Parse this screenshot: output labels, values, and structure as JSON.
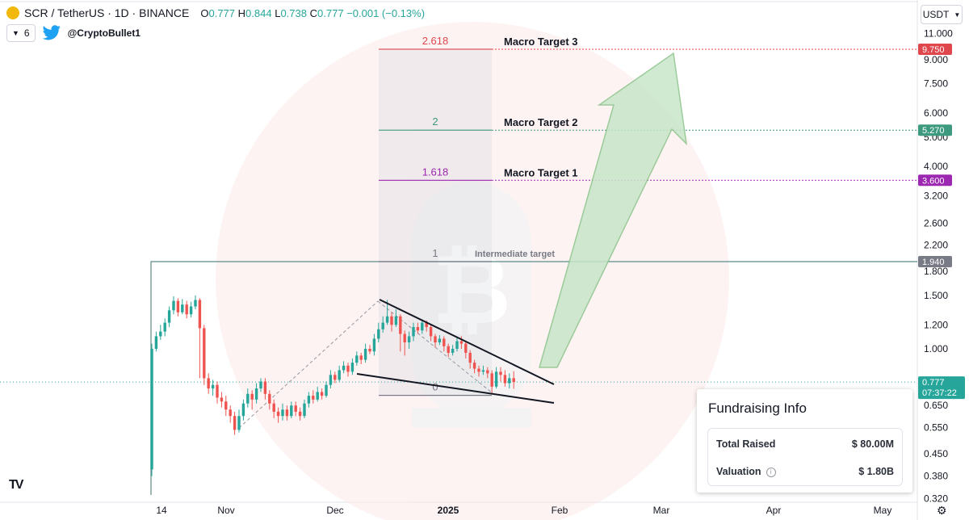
{
  "header": {
    "symbol": "SCR / TetherUS · 1D · BINANCE",
    "open_label": "O",
    "open": "0.777",
    "high_label": "H",
    "high": "0.844",
    "low_label": "L",
    "low": "0.738",
    "close_label": "C",
    "close": "0.777",
    "change": "−0.001 (−0.13%)",
    "interval_count": "6",
    "author": "@CryptoBullet1",
    "currency": "USDT"
  },
  "chart_data": {
    "type": "candlestick",
    "scale": "log",
    "ylim": [
      0.32,
      12.0
    ],
    "ytick_labels": [
      "11.000",
      "9.000",
      "7.500",
      "6.000",
      "5.000",
      "4.000",
      "3.200",
      "2.600",
      "2.200",
      "1.800",
      "1.500",
      "1.200",
      "1.000",
      "0.650",
      "0.550",
      "0.450",
      "0.380",
      "0.320"
    ],
    "xtick_labels": [
      "14",
      "Nov",
      "Dec",
      "2025",
      "Feb",
      "Mar",
      "Apr",
      "May"
    ],
    "candles": [
      [
        0.4,
        1.0,
        1.04,
        0.38
      ],
      [
        1.0,
        1.1,
        1.14,
        0.98
      ],
      [
        1.1,
        1.14,
        1.2,
        1.07
      ],
      [
        1.14,
        1.22,
        1.26,
        1.1
      ],
      [
        1.22,
        1.34,
        1.38,
        1.18
      ],
      [
        1.34,
        1.44,
        1.49,
        1.3
      ],
      [
        1.44,
        1.32,
        1.47,
        1.28
      ],
      [
        1.32,
        1.4,
        1.46,
        1.3
      ],
      [
        1.4,
        1.3,
        1.44,
        1.26
      ],
      [
        1.3,
        1.38,
        1.43,
        1.27
      ],
      [
        1.38,
        1.45,
        1.5,
        1.35
      ],
      [
        1.45,
        1.17,
        1.47,
        0.8
      ],
      [
        1.17,
        0.8,
        1.2,
        0.76
      ],
      [
        0.8,
        0.74,
        0.83,
        0.71
      ],
      [
        0.74,
        0.76,
        0.79,
        0.7
      ],
      [
        0.76,
        0.69,
        0.78,
        0.66
      ],
      [
        0.69,
        0.67,
        0.72,
        0.64
      ],
      [
        0.67,
        0.63,
        0.7,
        0.6
      ],
      [
        0.63,
        0.6,
        0.65,
        0.57
      ],
      [
        0.6,
        0.54,
        0.62,
        0.52
      ],
      [
        0.54,
        0.6,
        0.63,
        0.53
      ],
      [
        0.6,
        0.66,
        0.68,
        0.58
      ],
      [
        0.66,
        0.71,
        0.74,
        0.64
      ],
      [
        0.71,
        0.68,
        0.73,
        0.63
      ],
      [
        0.68,
        0.74,
        0.77,
        0.66
      ],
      [
        0.74,
        0.78,
        0.8,
        0.72
      ],
      [
        0.78,
        0.71,
        0.8,
        0.68
      ],
      [
        0.71,
        0.66,
        0.73,
        0.63
      ],
      [
        0.66,
        0.62,
        0.68,
        0.59
      ],
      [
        0.62,
        0.6,
        0.64,
        0.57
      ],
      [
        0.6,
        0.63,
        0.66,
        0.58
      ],
      [
        0.63,
        0.6,
        0.65,
        0.58
      ],
      [
        0.6,
        0.65,
        0.67,
        0.59
      ],
      [
        0.65,
        0.62,
        0.67,
        0.6
      ],
      [
        0.62,
        0.6,
        0.64,
        0.58
      ],
      [
        0.6,
        0.66,
        0.68,
        0.59
      ],
      [
        0.66,
        0.7,
        0.72,
        0.64
      ],
      [
        0.7,
        0.68,
        0.73,
        0.66
      ],
      [
        0.68,
        0.72,
        0.75,
        0.67
      ],
      [
        0.72,
        0.7,
        0.74,
        0.68
      ],
      [
        0.7,
        0.76,
        0.78,
        0.69
      ],
      [
        0.76,
        0.82,
        0.85,
        0.74
      ],
      [
        0.82,
        0.79,
        0.84,
        0.77
      ],
      [
        0.79,
        0.85,
        0.88,
        0.78
      ],
      [
        0.85,
        0.88,
        0.91,
        0.83
      ],
      [
        0.88,
        0.84,
        0.9,
        0.81
      ],
      [
        0.84,
        0.9,
        0.93,
        0.82
      ],
      [
        0.9,
        0.95,
        0.98,
        0.88
      ],
      [
        0.95,
        0.92,
        0.97,
        0.89
      ],
      [
        0.92,
        1.0,
        1.04,
        0.9
      ],
      [
        1.0,
        0.98,
        1.03,
        0.96
      ],
      [
        0.98,
        1.08,
        1.12,
        0.95
      ],
      [
        1.08,
        1.16,
        1.22,
        1.05
      ],
      [
        1.16,
        1.22,
        1.28,
        1.13
      ],
      [
        1.22,
        1.28,
        1.45,
        1.2
      ],
      [
        1.28,
        1.2,
        1.32,
        1.14
      ],
      [
        1.2,
        1.28,
        1.35,
        1.18
      ],
      [
        1.28,
        1.12,
        1.3,
        0.98
      ],
      [
        1.12,
        1.05,
        1.15,
        0.95
      ],
      [
        1.05,
        1.1,
        1.14,
        1.0
      ],
      [
        1.1,
        1.18,
        1.22,
        1.06
      ],
      [
        1.18,
        1.15,
        1.22,
        1.12
      ],
      [
        1.15,
        1.22,
        1.25,
        1.12
      ],
      [
        1.22,
        1.18,
        1.24,
        1.14
      ],
      [
        1.18,
        1.1,
        1.2,
        1.06
      ],
      [
        1.1,
        1.05,
        1.12,
        1.01
      ],
      [
        1.05,
        1.08,
        1.11,
        1.03
      ],
      [
        1.08,
        1.02,
        1.1,
        0.98
      ],
      [
        1.02,
        0.97,
        1.04,
        0.94
      ],
      [
        0.97,
        1.0,
        1.03,
        0.95
      ],
      [
        1.0,
        1.06,
        1.09,
        0.98
      ],
      [
        1.06,
        1.04,
        1.1,
        1.0
      ],
      [
        1.04,
        0.97,
        1.06,
        0.93
      ],
      [
        0.97,
        0.9,
        0.99,
        0.86
      ],
      [
        0.9,
        0.86,
        0.92,
        0.83
      ],
      [
        0.86,
        0.84,
        0.88,
        0.81
      ],
      [
        0.84,
        0.85,
        0.88,
        0.82
      ],
      [
        0.85,
        0.83,
        0.87,
        0.8
      ],
      [
        0.83,
        0.75,
        0.85,
        0.71
      ],
      [
        0.75,
        0.84,
        0.87,
        0.74
      ],
      [
        0.84,
        0.82,
        0.87,
        0.78
      ],
      [
        0.82,
        0.77,
        0.85,
        0.75
      ],
      [
        0.77,
        0.8,
        0.83,
        0.74
      ],
      [
        0.8,
        0.777,
        0.844,
        0.738
      ]
    ],
    "levels": [
      {
        "fib": "2.618",
        "value": 9.75,
        "label": "Macro Target 3",
        "price_tag": "9.750",
        "color": "#e0474c"
      },
      {
        "fib": "2",
        "value": 5.27,
        "label": "Macro Target 2",
        "price_tag": "5.270",
        "color": "#3d9a7e"
      },
      {
        "fib": "1.618",
        "value": 3.6,
        "label": "Macro Target 1",
        "price_tag": "3.600",
        "color": "#9c27b0"
      },
      {
        "fib": "1",
        "value": 1.94,
        "label": "Intermediate target",
        "price_tag": "1.940",
        "color": "#787b86"
      },
      {
        "fib": "0",
        "value": 0.702,
        "label": "",
        "price_tag": "",
        "color": "#787b86"
      }
    ],
    "last_price_tag": "0.777",
    "countdown": "07:37:22"
  },
  "card": {
    "title": "Fundraising Info",
    "rows": [
      {
        "label": "Total Raised",
        "value": "$ 80.00M"
      },
      {
        "label": "Valuation",
        "value": "$ 1.80B"
      }
    ]
  },
  "colors": {
    "up": "#26a69a",
    "down": "#ef5350"
  },
  "icons": {
    "logo": "scr-coin-icon",
    "twitter": "twitter-bird-icon",
    "settings": "gear-icon",
    "brand": "tradingview-logo"
  }
}
